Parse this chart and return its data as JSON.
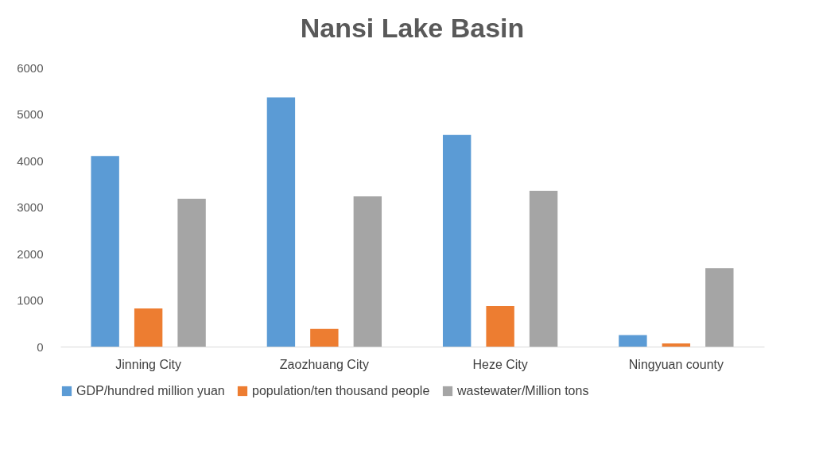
{
  "chart_data": {
    "type": "bar",
    "title": "Nansi Lake Basin",
    "categories": [
      "Jinning City",
      "Zaozhuang City",
      "Heze City",
      "Ningyuan county"
    ],
    "series": [
      {
        "name": "GDP/hundred million yuan",
        "color": "#5b9bd5",
        "values": [
          4100,
          5360,
          4550,
          250
        ]
      },
      {
        "name": "population/ten thousand people",
        "color": "#ed7d31",
        "values": [
          820,
          380,
          870,
          70
        ]
      },
      {
        "name": "wastewater/Million tons",
        "color": "#a5a5a5",
        "values": [
          3180,
          3230,
          3350,
          1690
        ]
      }
    ],
    "ylim": [
      0,
      6000
    ],
    "yticks": [
      0,
      1000,
      2000,
      3000,
      4000,
      5000,
      6000
    ],
    "grid": false,
    "legend": "bottom"
  }
}
